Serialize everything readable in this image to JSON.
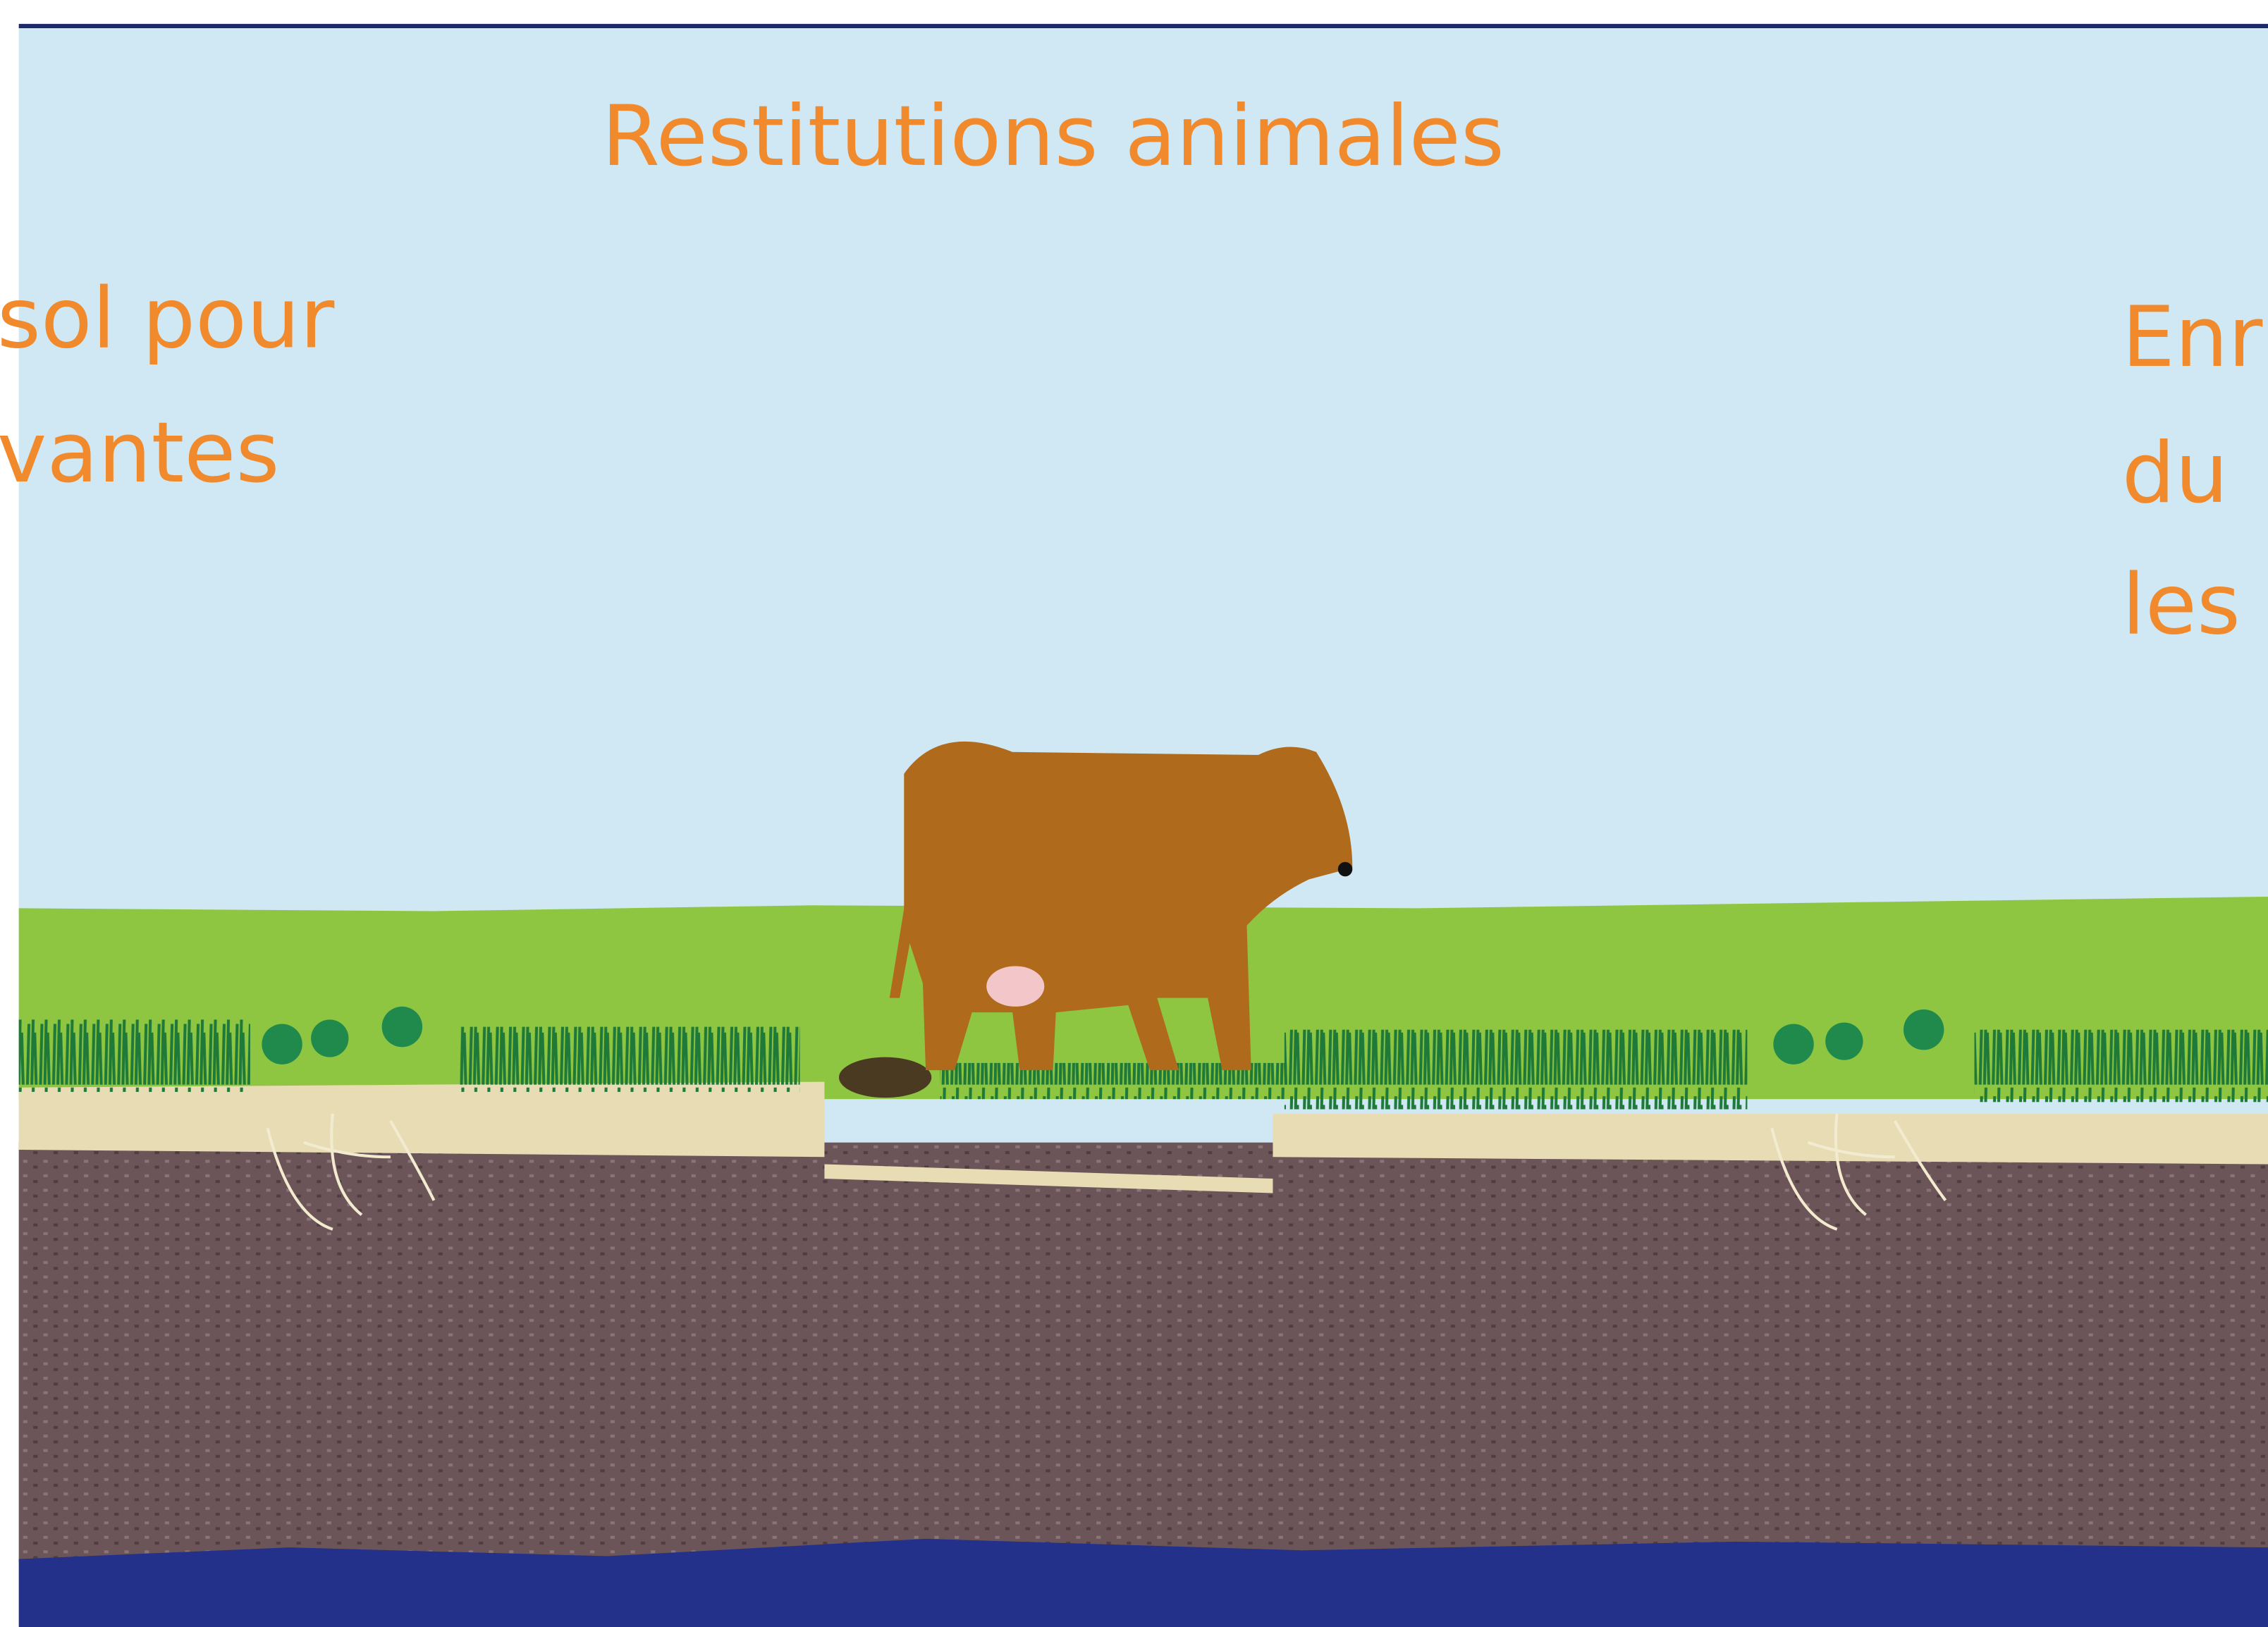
{
  "title": "Restitutions animales",
  "left_label": {
    "lines": [
      "sol pour",
      "vantes"
    ]
  },
  "right_label": {
    "lines": [
      "Enr",
      "du",
      "les"
    ]
  }
}
